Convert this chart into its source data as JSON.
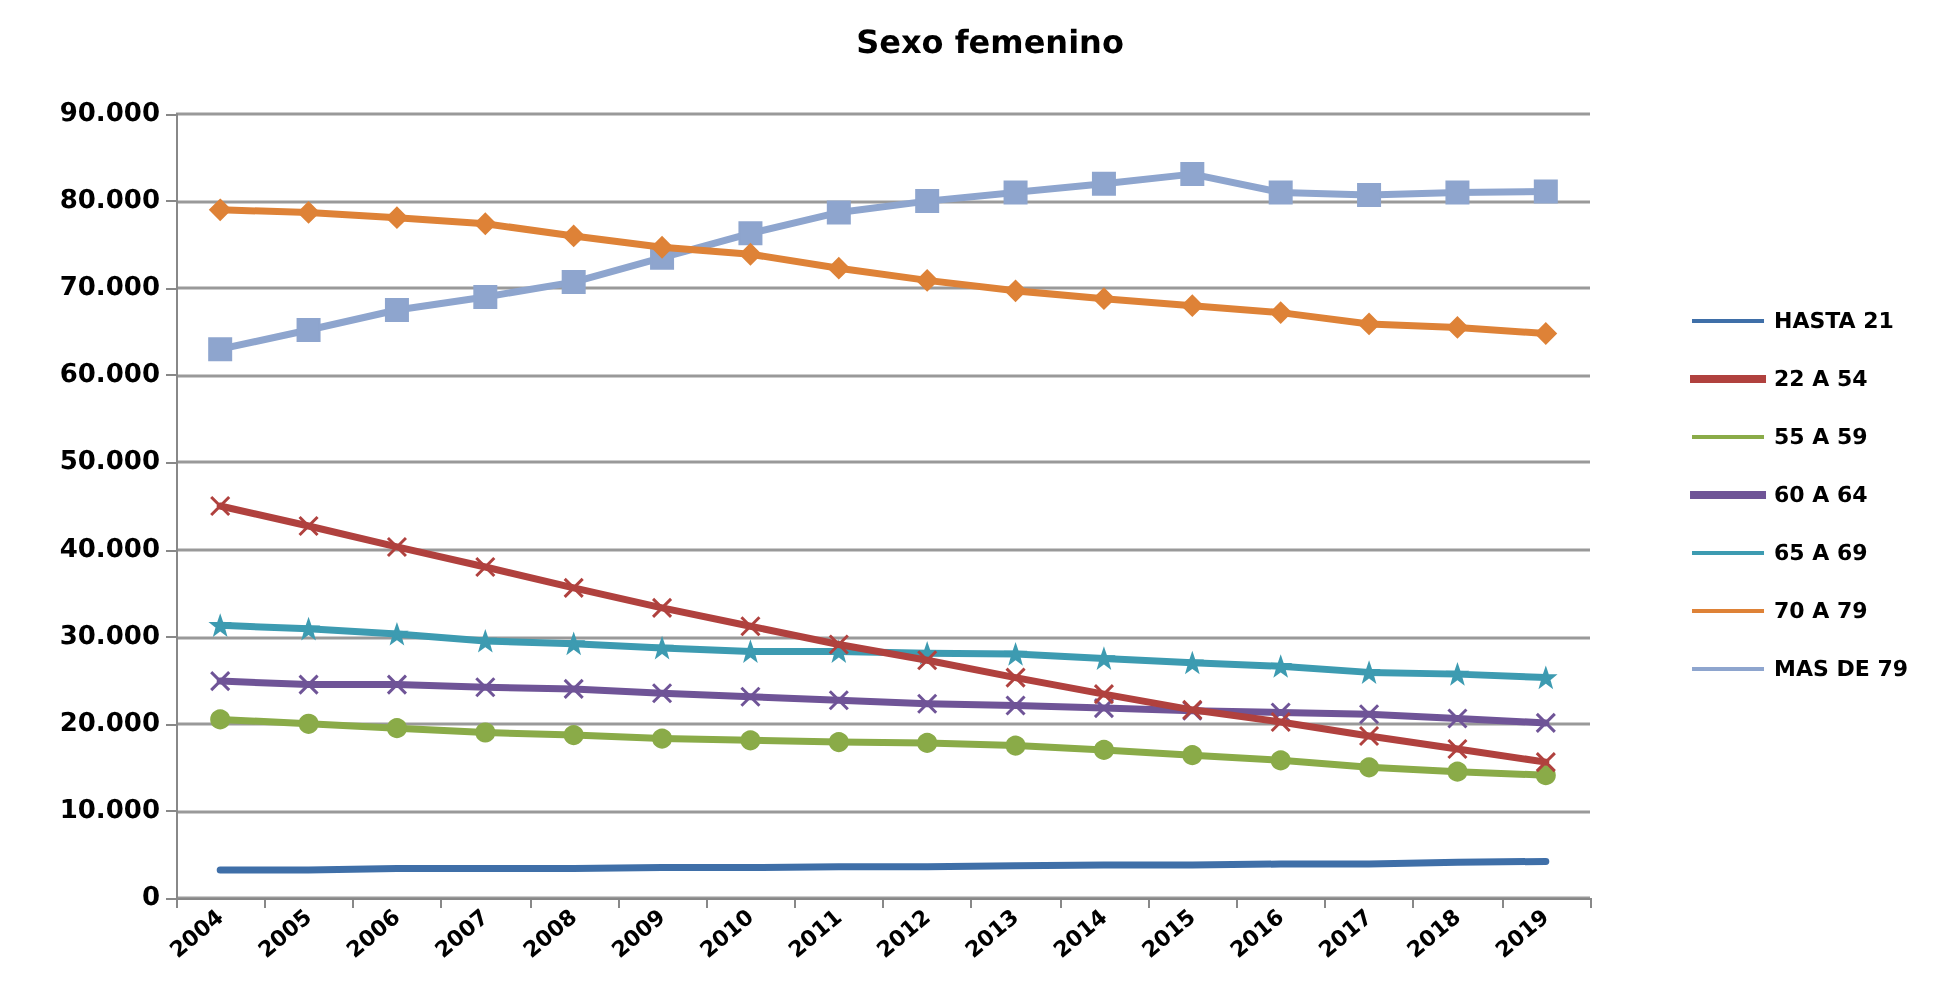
{
  "chart_data": {
    "type": "line",
    "title": "Sexo femenino",
    "categories": [
      "2004",
      "2005",
      "2006",
      "2007",
      "2008",
      "2009",
      "2010",
      "2011",
      "2012",
      "2013",
      "2014",
      "2015",
      "2016",
      "2017",
      "2018",
      "2019"
    ],
    "ylim": [
      0,
      90000
    ],
    "yticks": [
      {
        "value": 0,
        "label": "0"
      },
      {
        "value": 10000,
        "label": "10.000"
      },
      {
        "value": 20000,
        "label": "20.000"
      },
      {
        "value": 30000,
        "label": "30.000"
      },
      {
        "value": 40000,
        "label": "40.000"
      },
      {
        "value": 50000,
        "label": "50.000"
      },
      {
        "value": 60000,
        "label": "60.000"
      },
      {
        "value": 70000,
        "label": "70.000"
      },
      {
        "value": 80000,
        "label": "80.000"
      },
      {
        "value": 90000,
        "label": "90.000"
      }
    ],
    "grid": "y",
    "legend": "right",
    "series": [
      {
        "name": "HASTA 21",
        "color": "#3f6fa8",
        "marker": "none",
        "values": [
          3200,
          3200,
          3400,
          3400,
          3400,
          3500,
          3500,
          3600,
          3600,
          3700,
          3800,
          3800,
          3900,
          3900,
          4100,
          4200
        ]
      },
      {
        "name": "22 A 54",
        "color": "#b0413e",
        "marker": "cross",
        "values": [
          45000,
          42700,
          40300,
          38000,
          35600,
          33300,
          31200,
          29100,
          27300,
          25300,
          23400,
          21600,
          20200,
          18600,
          17100,
          15600
        ]
      },
      {
        "name": "55 A 59",
        "color": "#8aab48",
        "marker": "circle",
        "values": [
          20500,
          20000,
          19500,
          19000,
          18700,
          18300,
          18100,
          17900,
          17800,
          17500,
          17000,
          16400,
          15800,
          15000,
          14500,
          14100
        ]
      },
      {
        "name": "60 A 64",
        "color": "#6f5497",
        "marker": "cross",
        "values": [
          24900,
          24500,
          24500,
          24200,
          24000,
          23500,
          23100,
          22700,
          22300,
          22100,
          21800,
          21500,
          21300,
          21100,
          20600,
          20100
        ]
      },
      {
        "name": "65 A 69",
        "color": "#3d9bb1",
        "marker": "star",
        "values": [
          31300,
          30900,
          30300,
          29500,
          29200,
          28700,
          28300,
          28300,
          28100,
          28000,
          27500,
          27000,
          26600,
          25900,
          25700,
          25300
        ]
      },
      {
        "name": "70 A 79",
        "color": "#de8237",
        "marker": "diamond",
        "values": [
          79000,
          78700,
          78100,
          77400,
          76000,
          74700,
          73900,
          72300,
          70900,
          69700,
          68800,
          68000,
          67200,
          65900,
          65500,
          64800
        ]
      },
      {
        "name": "MAS DE 79",
        "color": "#8ea5ce",
        "marker": "square",
        "values": [
          63000,
          65200,
          67500,
          69000,
          70700,
          73500,
          76300,
          78700,
          80000,
          81000,
          82000,
          83100,
          81000,
          80700,
          81000,
          81100
        ]
      }
    ]
  }
}
